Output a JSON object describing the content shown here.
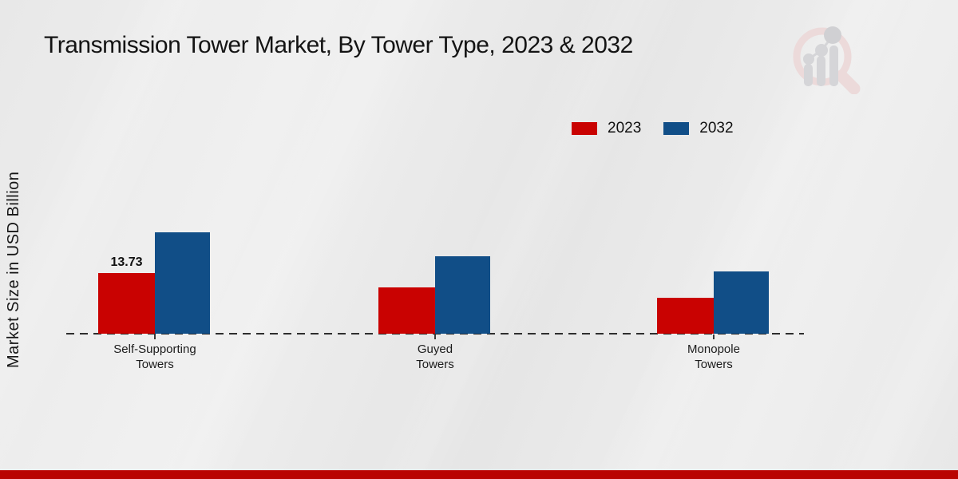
{
  "page": {
    "title": "Transmission Tower Market, By Tower Type, 2023 & 2032",
    "y_axis_label": "Market Size in USD Billion"
  },
  "colors": {
    "series_2023": "#c90201",
    "series_2032": "#114e87",
    "footer_bar": "#b90301",
    "axis_line": "#2e2e2e",
    "watermark_pink": "#ecdada",
    "watermark_gray": "#d5d5d8"
  },
  "legend": {
    "items": [
      {
        "label": "2023",
        "color": "#c90201"
      },
      {
        "label": "2032",
        "color": "#114e87"
      }
    ]
  },
  "watermark": {
    "icon": "bar-chart-magnifier-logo"
  },
  "chart_data": {
    "type": "bar",
    "title": "Transmission Tower Market, By Tower Type, 2023 & 2032",
    "xlabel": "",
    "ylabel": "Market Size in USD Billion",
    "units": "USD Billion",
    "categories": [
      "Self-Supporting Towers",
      "Guyed Towers",
      "Monopole Towers"
    ],
    "category_label_lines": [
      [
        "Self-Supporting",
        "Towers"
      ],
      [
        "Guyed",
        "Towers"
      ],
      [
        "Monopole",
        "Towers"
      ]
    ],
    "series": [
      {
        "name": "2023",
        "color": "#c90201",
        "values": [
          13.73,
          10.5,
          8.2
        ]
      },
      {
        "name": "2032",
        "color": "#114e87",
        "values": [
          22.9,
          17.6,
          14.1
        ]
      }
    ],
    "value_labels": [
      {
        "series_index": 0,
        "category_index": 0,
        "text": "13.73"
      }
    ],
    "ylim": [
      0,
      30
    ],
    "grid": false,
    "y_axis_ticks_visible": false,
    "legend_position": "top-right",
    "x_axis_style": "dashed"
  }
}
